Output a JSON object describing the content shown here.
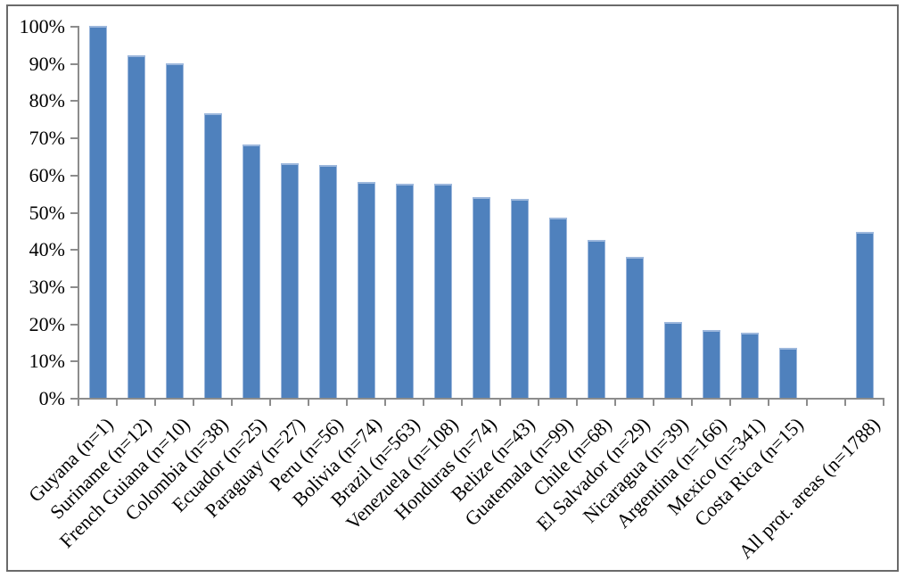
{
  "chart_data": {
    "type": "bar",
    "title": "",
    "xlabel": "",
    "ylabel": "",
    "grid": false,
    "legend_position": "none",
    "ylim": [
      0,
      100
    ],
    "ytick_step": 10,
    "ytick_labels": [
      "0%",
      "10%",
      "20%",
      "30%",
      "40%",
      "50%",
      "60%",
      "70%",
      "80%",
      "90%",
      "100%"
    ],
    "categories": [
      "Guyana (n=1)",
      "Suriname (n=12)",
      "French Guiana (n=10)",
      "Colombia (n=38)",
      "Ecuador (n=25)",
      "Paraguay (n=27)",
      "Peru (n=56)",
      "Bolivia (n=74)",
      "Brazil (n=563)",
      "Venezuela (n=108)",
      "Honduras (n=74)",
      "Belize (n=43)",
      "Guatemala (n=99)",
      "Chile (n=68)",
      "El Salvador (n=29)",
      "Nicaragua (n=39)",
      "Argentina (n=166)",
      "Mexico (n=341)",
      "Costa Rica (n=15)",
      "",
      "All prot. areas (n=1788)"
    ],
    "values": [
      100,
      92,
      90,
      76.5,
      68,
      63,
      62.5,
      58,
      57.5,
      57.5,
      54,
      53.5,
      48.5,
      42.5,
      38,
      20.5,
      18.3,
      17.5,
      13.4,
      null,
      44.5
    ],
    "colors": {
      "bar_fill": "#4F81BD",
      "bar_edge": "#9CB7DC",
      "axis": "#8C8C8C",
      "tick": "#8C8C8C",
      "frame_border": "#6A6A6A",
      "text": "#000000",
      "background": "#FFFFFF"
    }
  }
}
